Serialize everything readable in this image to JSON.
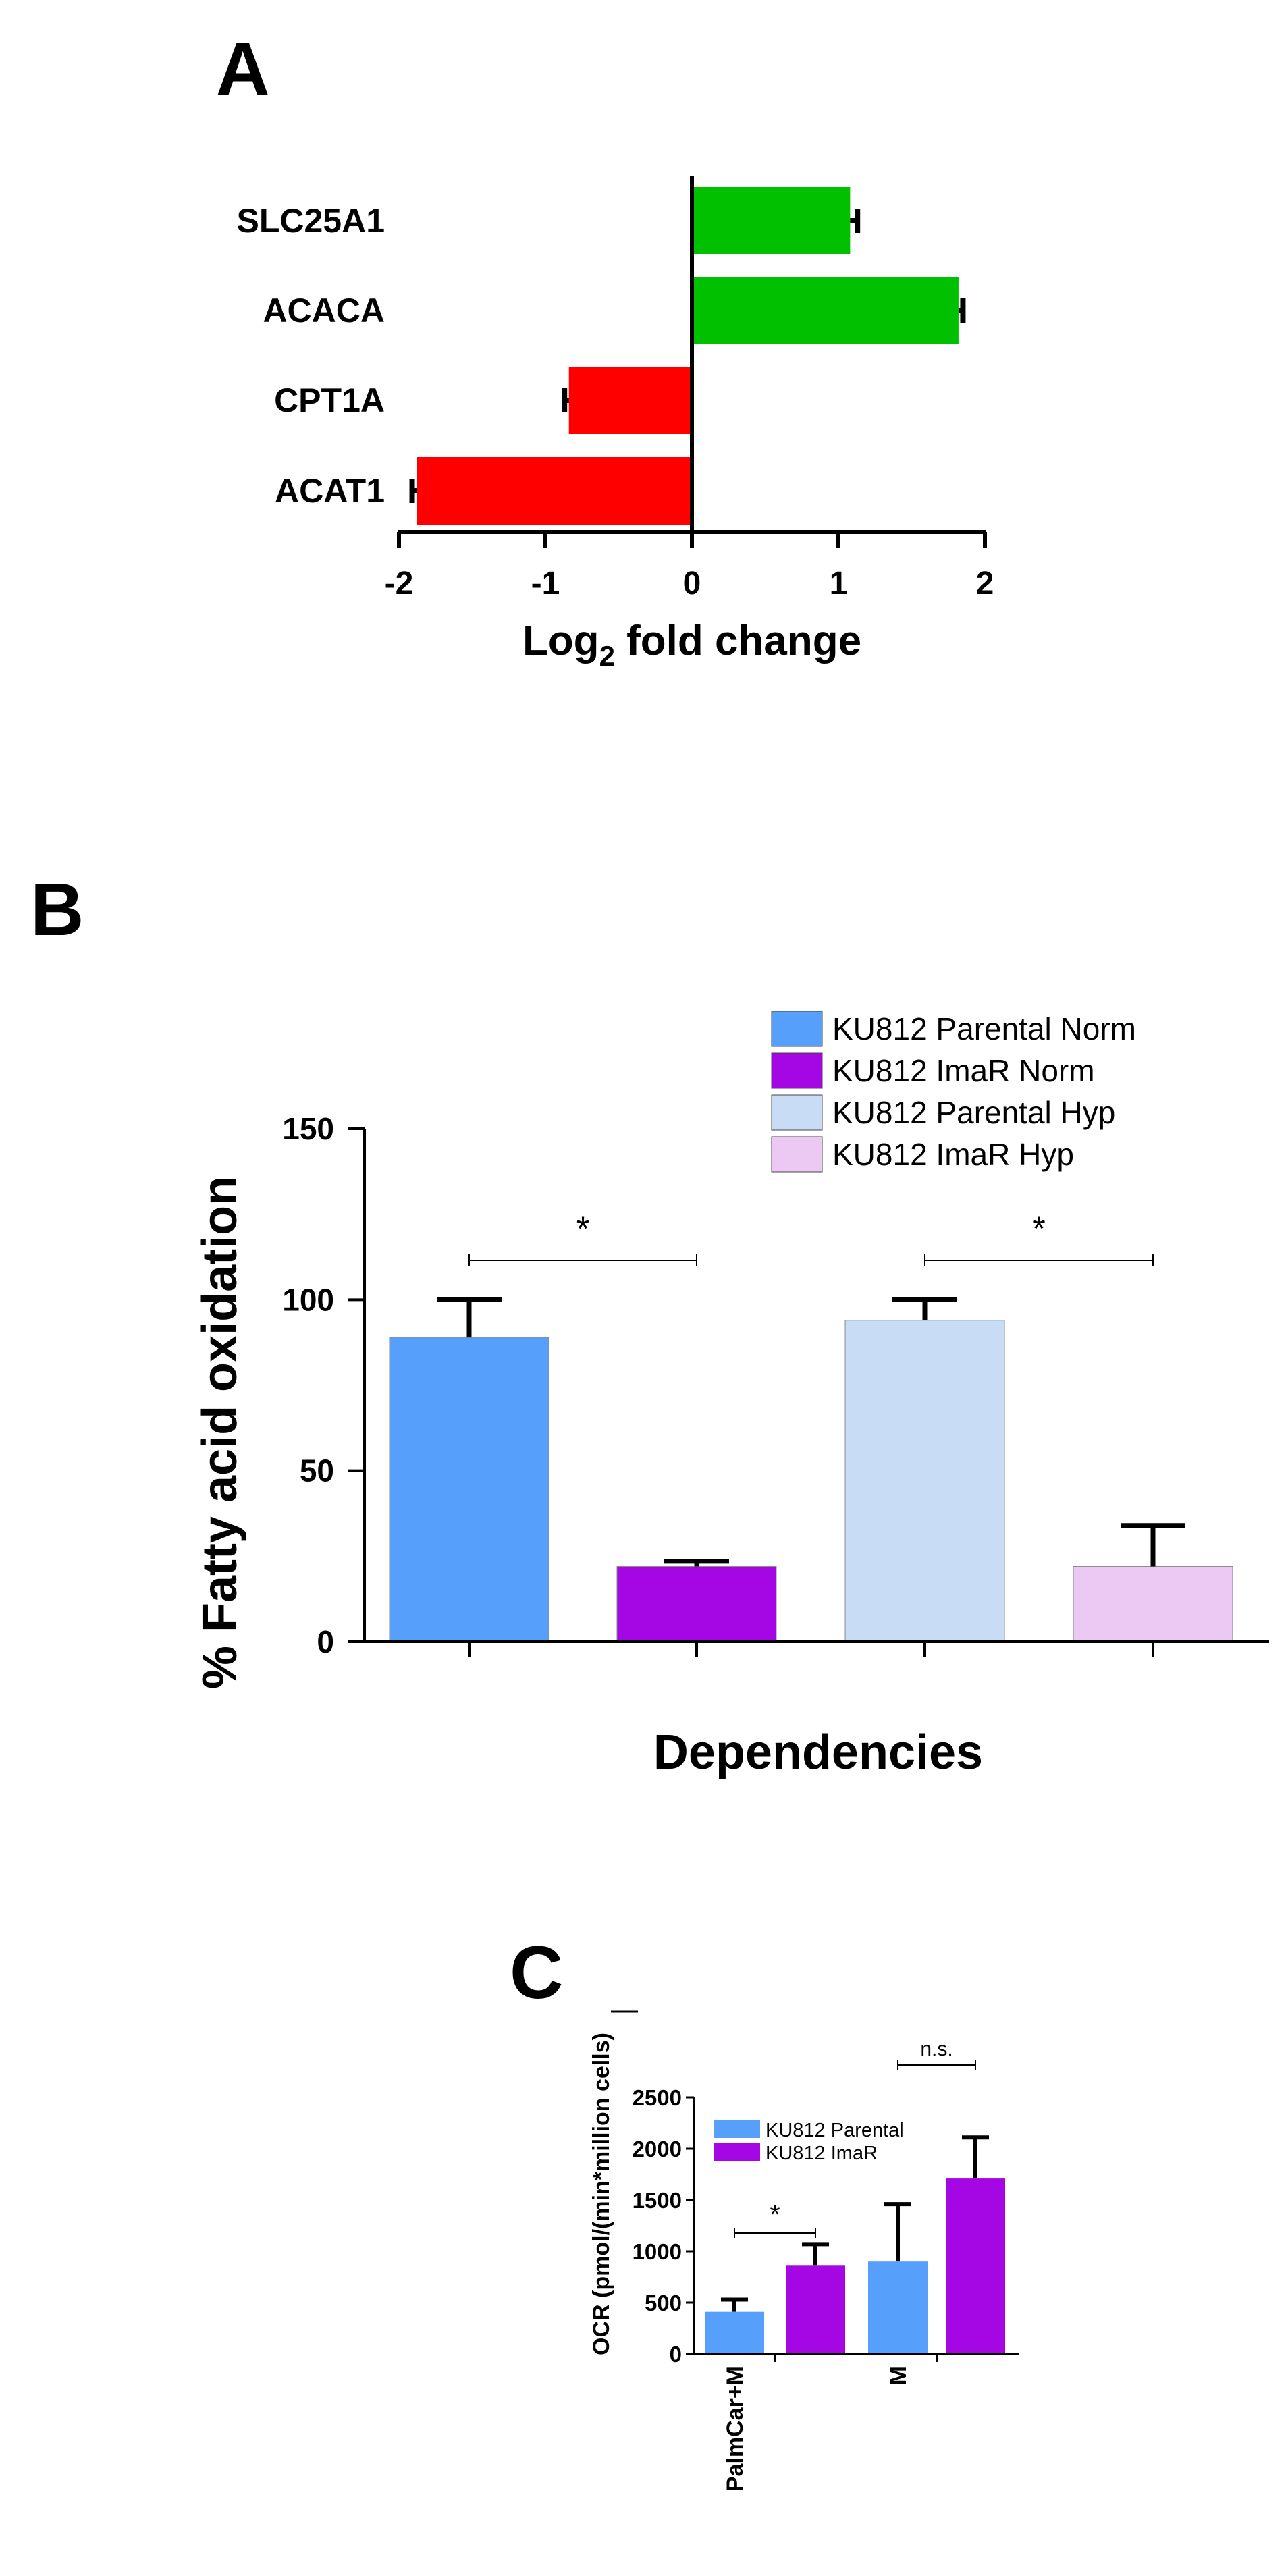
{
  "panels": {
    "a": {
      "label": "A"
    },
    "b": {
      "label": "B"
    },
    "c": {
      "label": "C"
    }
  },
  "chart_data": [
    {
      "id": "a",
      "type": "bar",
      "orientation": "horizontal",
      "categories": [
        "SLC25A1",
        "ACACA",
        "CPT1A",
        "ACAT1"
      ],
      "values": [
        1.08,
        1.82,
        -0.84,
        -1.88
      ],
      "errors": [
        0.05,
        0.03,
        0.03,
        0.03
      ],
      "colors": [
        "#00c000",
        "#00c000",
        "#ff0000",
        "#ff0000"
      ],
      "xlabel": "Log",
      "xlabel_sub": "2",
      "xlabel_rest": " fold change",
      "xlim": [
        -2,
        2
      ],
      "xticks": [
        "-2",
        "-1",
        "0",
        "1",
        "2"
      ]
    },
    {
      "id": "b",
      "type": "bar",
      "categories": [
        "KU812 Parental Norm",
        "KU812 ImaR Norm",
        "KU812 Parental Hyp",
        "KU812 ImaR Hyp"
      ],
      "values": [
        89,
        22,
        94,
        22
      ],
      "errors": [
        11,
        1.5,
        6,
        12
      ],
      "colors": [
        "#569ffb",
        "#a407e3",
        "#c8dcf5",
        "#ebc9f3"
      ],
      "legend": [
        "KU812 Parental Norm",
        "KU812 ImaR Norm",
        "KU812 Parental Hyp",
        "KU812 ImaR Hyp"
      ],
      "ylabel": "% Fatty acid oxidation",
      "xlabel": "Dependencies",
      "ylim": [
        0,
        150
      ],
      "yticks": [
        "0",
        "50",
        "100",
        "150"
      ],
      "significance": [
        {
          "from": 0,
          "to": 1,
          "label": "*"
        },
        {
          "from": 2,
          "to": 3,
          "label": "*"
        }
      ]
    },
    {
      "id": "c",
      "type": "bar",
      "categories": [
        "PalmCar+M",
        "M"
      ],
      "series": [
        {
          "name": "KU812 Parental",
          "values": [
            410,
            900
          ],
          "errors": [
            120,
            560
          ],
          "color": "#569ffb"
        },
        {
          "name": "KU812 ImaR",
          "values": [
            860,
            1710
          ],
          "errors": [
            210,
            400
          ],
          "color": "#a407e3"
        }
      ],
      "ylabel": "OCR (pmol/(min*million cells)",
      "ylim": [
        0,
        2500
      ],
      "yticks": [
        "0",
        "500",
        "1000",
        "1500",
        "2000",
        "2500"
      ],
      "significance": [
        {
          "group": 0,
          "label": "*"
        },
        {
          "group": 1,
          "label": "n.s."
        }
      ]
    }
  ]
}
